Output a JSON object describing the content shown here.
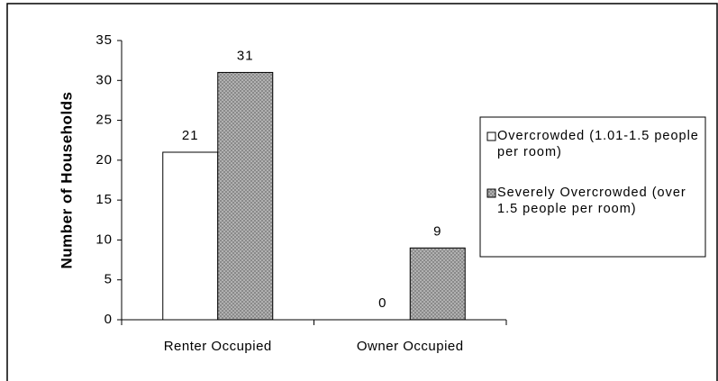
{
  "chart_data": {
    "type": "bar",
    "ylabel": "Number of Households",
    "categories": [
      "Renter Occupied",
      "Owner Occupied"
    ],
    "series": [
      {
        "name": "Overcrowded (1.01-1.5 people per room)",
        "color": "#ffffff",
        "values": [
          21,
          0
        ]
      },
      {
        "name": "Severely Overcrowded (over 1.5 people per room)",
        "color": "#8a8a8a",
        "values": [
          31,
          9
        ]
      }
    ],
    "ylim": [
      0,
      35
    ],
    "yticks": [
      0,
      5,
      10,
      15,
      20,
      25,
      30,
      35
    ],
    "legend": "right",
    "grid": false
  }
}
